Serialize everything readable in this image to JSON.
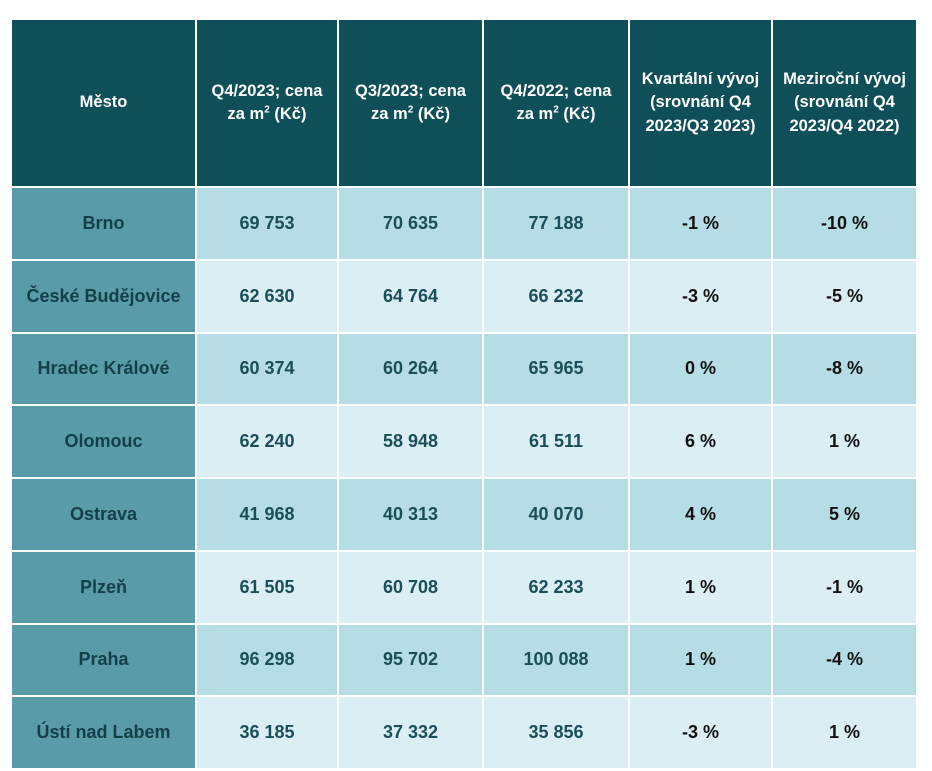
{
  "table": {
    "header": [
      "Město",
      {
        "before": "Q4/2023; cena za m",
        "sup": "2",
        "after": " (Kč)"
      },
      {
        "before": "Q3/2023;  cena za m",
        "sup": "2",
        "after": " (Kč)"
      },
      {
        "before": "Q4/2022; cena za m",
        "sup": "2",
        "after": " (Kč)"
      },
      "Kvartální vývoj (srovnání Q4 2023/Q3 2023)",
      "Meziroční vývoj (srovnání Q4 2023/Q4 2022)"
    ],
    "rows": [
      [
        "Brno",
        "69 753",
        "70 635",
        "77 188",
        "-1 %",
        "-10 %"
      ],
      [
        "České Budějovice",
        "62 630",
        "64 764",
        "66 232",
        "-3 %",
        "-5 %"
      ],
      [
        "Hradec Králové",
        "60 374",
        "60 264",
        "65 965",
        "0 %",
        "-8 %"
      ],
      [
        "Olomouc",
        "62 240",
        "58 948",
        "61 511",
        "6 %",
        "1 %"
      ],
      [
        "Ostrava",
        "41 968",
        "40 313",
        "40 070",
        "4 %",
        "5 %"
      ],
      [
        "Plzeň",
        "61 505",
        "60 708",
        "62 233",
        "1 %",
        "-1 %"
      ],
      [
        "Praha",
        "96 298",
        "95 702",
        "100 088",
        "1 %",
        "-4 %"
      ],
      [
        "Ústí nad Labem",
        "36 185",
        "37 332",
        "35 856",
        "-3 %",
        "1 %"
      ]
    ]
  }
}
